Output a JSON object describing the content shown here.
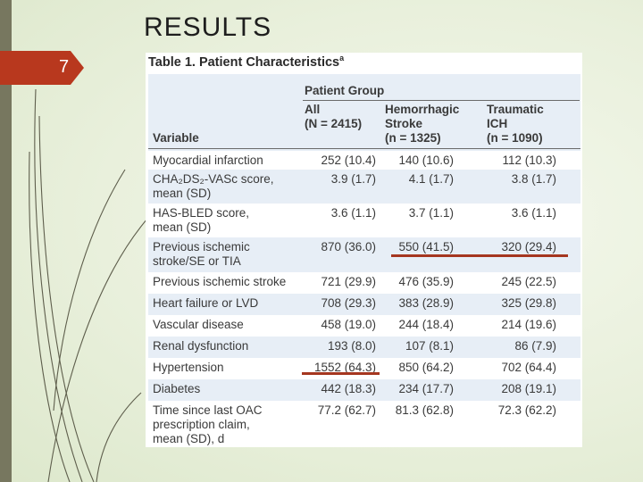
{
  "slide": {
    "title": "RESULTS",
    "number": "7",
    "accent_color": "#b8381e",
    "bar_color": "#77775f"
  },
  "table": {
    "title": "Table 1. Patient Characteristics",
    "title_superscript": "a",
    "group_label": "Patient Group",
    "columns": [
      {
        "lines": [
          "Variable"
        ]
      },
      {
        "lines": [
          "All",
          "(N = 2415)"
        ]
      },
      {
        "lines": [
          "Hemorrhagic",
          "Stroke",
          "(n = 1325)"
        ]
      },
      {
        "lines": [
          "Traumatic",
          "ICH",
          "(n = 1090)"
        ]
      }
    ],
    "rows": [
      {
        "variable": [
          "Myocardial infarction"
        ],
        "all": "252 (10.4)",
        "hemorrhagic": "140 (10.6)",
        "traumatic": "112 (10.3)"
      },
      {
        "variable": [
          "CHA₂DS₂-VASc score,",
          "mean (SD)"
        ],
        "all": "3.9 (1.7)",
        "hemorrhagic": "4.1 (1.7)",
        "traumatic": "3.8 (1.7)"
      },
      {
        "variable": [
          "HAS-BLED score,",
          "mean (SD)"
        ],
        "all": "3.6 (1.1)",
        "hemorrhagic": "3.7 (1.1)",
        "traumatic": "3.6 (1.1)"
      },
      {
        "variable": [
          "Previous ischemic",
          "stroke/SE or TIA"
        ],
        "all": "870 (36.0)",
        "hemorrhagic": "550 (41.5)",
        "traumatic": "320 (29.4)"
      },
      {
        "variable": [
          "Previous ischemic stroke"
        ],
        "all": "721 (29.9)",
        "hemorrhagic": "476 (35.9)",
        "traumatic": "245 (22.5)"
      },
      {
        "variable": [
          "Heart failure or LVD"
        ],
        "all": "708 (29.3)",
        "hemorrhagic": "383 (28.9)",
        "traumatic": "325 (29.8)"
      },
      {
        "variable": [
          "Vascular disease"
        ],
        "all": "458 (19.0)",
        "hemorrhagic": "244 (18.4)",
        "traumatic": "214 (19.6)"
      },
      {
        "variable": [
          "Renal dysfunction"
        ],
        "all": "193 (8.0)",
        "hemorrhagic": "107 (8.1)",
        "traumatic": "86 (7.9)"
      },
      {
        "variable": [
          "Hypertension"
        ],
        "all": "1552 (64.3)",
        "hemorrhagic": "850 (64.2)",
        "traumatic": "702 (64.4)"
      },
      {
        "variable": [
          "Diabetes"
        ],
        "all": "442 (18.3)",
        "hemorrhagic": "234 (17.7)",
        "traumatic": "208 (19.1)"
      },
      {
        "variable": [
          "Time since last OAC",
          "prescription claim,",
          "mean (SD), d"
        ],
        "all": "77.2 (62.7)",
        "hemorrhagic": "81.3 (62.8)",
        "traumatic": "72.3 (62.2)"
      }
    ]
  }
}
